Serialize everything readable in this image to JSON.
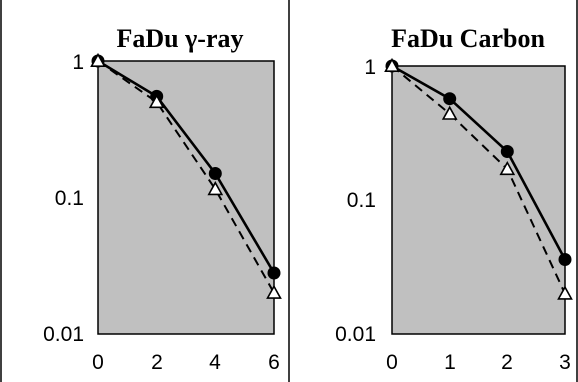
{
  "chart_data": [
    {
      "type": "line",
      "title": "FaDu γ-ray",
      "xlabel": "",
      "ylabel": "",
      "y_scale": "log",
      "xlim": [
        0,
        6
      ],
      "ylim": [
        0.01,
        1
      ],
      "x_ticks": [
        "0",
        "2",
        "4",
        "6"
      ],
      "y_ticks": [
        "1",
        "0.1",
        "0.01"
      ],
      "background": "#c0c0c0",
      "series": [
        {
          "marker": "filled-circle",
          "line": "solid",
          "x": [
            0,
            2,
            4,
            6
          ],
          "y": [
            1,
            0.55,
            0.15,
            0.028
          ]
        },
        {
          "marker": "open-triangle",
          "line": "dashed",
          "x": [
            0,
            2,
            4,
            6
          ],
          "y": [
            1,
            0.5,
            0.115,
            0.02
          ]
        }
      ]
    },
    {
      "type": "line",
      "title": "FaDu Carbon",
      "xlabel": "",
      "ylabel": "",
      "y_scale": "log",
      "xlim": [
        0,
        3
      ],
      "ylim": [
        0.01,
        1
      ],
      "x_ticks": [
        "0",
        "1",
        "2",
        "3"
      ],
      "y_ticks": [
        "1",
        "0.1",
        "0.01"
      ],
      "background": "#c0c0c0",
      "series": [
        {
          "marker": "filled-circle",
          "line": "solid",
          "x": [
            0,
            1,
            2,
            3
          ],
          "y": [
            1,
            0.57,
            0.23,
            0.036
          ]
        },
        {
          "marker": "open-triangle",
          "line": "dashed",
          "x": [
            0,
            1,
            2,
            3
          ],
          "y": [
            1,
            0.44,
            0.17,
            0.02
          ]
        }
      ]
    }
  ]
}
